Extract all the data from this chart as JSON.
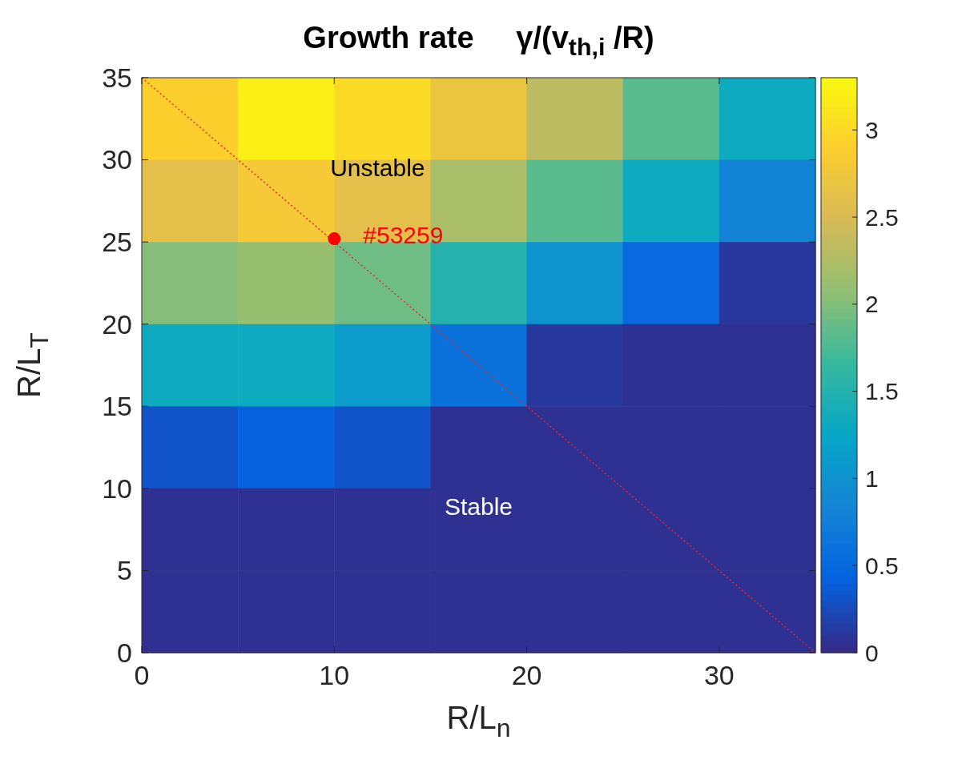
{
  "chart_data": {
    "type": "heatmap",
    "title": "Growth rate     γ/(v$_{th,i}$ /R)",
    "xlabel": "R/L$_{n}$",
    "ylabel": "R/L$_{T}$",
    "x": [
      2.5,
      7.5,
      12.5,
      17.5,
      22.5,
      27.5,
      32.5
    ],
    "y": [
      32.5,
      27.5,
      22.5,
      17.5,
      12.5,
      7.5,
      2.5
    ],
    "cells": [
      [
        2.9,
        3.2,
        3.0,
        2.7,
        2.3,
        1.8,
        1.3
      ],
      [
        2.6,
        2.8,
        2.6,
        2.2,
        1.8,
        1.3,
        0.8
      ],
      [
        2.0,
        2.1,
        1.9,
        1.5,
        1.0,
        0.5,
        0.1
      ],
      [
        1.3,
        1.3,
        1.1,
        0.6,
        0.1,
        0.05,
        0.05
      ],
      [
        0.3,
        0.4,
        0.3,
        0.05,
        0.05,
        0.05,
        0.05
      ],
      [
        0.05,
        0.05,
        0.05,
        0.05,
        0.05,
        0.05,
        0.05
      ],
      [
        0.05,
        0.05,
        0.05,
        0.05,
        0.05,
        0.05,
        0.05
      ]
    ],
    "xlim": [
      0,
      35
    ],
    "xticks": [
      0,
      10,
      20,
      30
    ],
    "ylim": [
      0,
      35
    ],
    "yticks": [
      0,
      5,
      10,
      15,
      20,
      25,
      30,
      35
    ],
    "clim": [
      0,
      3.3
    ],
    "cticks": [
      0,
      0.5,
      1,
      1.5,
      2,
      2.5,
      3
    ],
    "series": [
      {
        "type": "line",
        "x": [
          0,
          35
        ],
        "values": [
          35,
          0
        ],
        "color": "#e8262a",
        "line_style": "dotted"
      },
      {
        "type": "scatter",
        "name": "#53259",
        "x": [
          10
        ],
        "values": [
          25.2
        ],
        "color": "#ff0000",
        "marker": "circle"
      }
    ],
    "annotations": [
      "Unstable",
      "Stable"
    ]
  }
}
